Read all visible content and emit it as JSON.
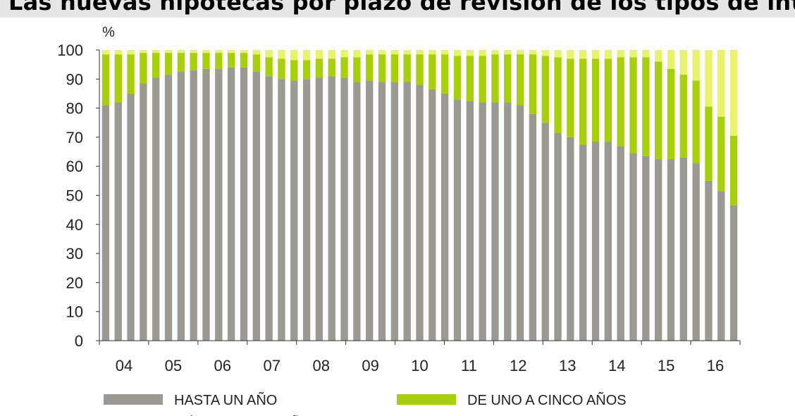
{
  "title": "Las nuevas hipotecas por plazo de revisión de los tipos de interés",
  "chart_data": {
    "type": "bar",
    "stacked": true,
    "unit_label": "%",
    "ylim": [
      0,
      100
    ],
    "yticks": [
      0,
      10,
      20,
      30,
      40,
      50,
      60,
      70,
      80,
      90,
      100
    ],
    "x_tick_labels": [
      "04",
      "05",
      "06",
      "07",
      "08",
      "09",
      "10",
      "11",
      "12",
      "13",
      "14",
      "15",
      "16"
    ],
    "grid": false,
    "legend_position": "bottom",
    "series": [
      {
        "name": "HASTA UN AÑO",
        "color": "#9a9a93",
        "values": [
          81,
          82,
          85,
          88.5,
          90.5,
          91.5,
          92.5,
          93,
          93.5,
          93.5,
          94,
          94,
          92.5,
          91,
          90,
          89.5,
          90,
          90.5,
          91,
          90.5,
          89,
          89.5,
          89,
          89,
          89,
          88,
          86.5,
          85,
          83,
          82.5,
          82,
          82,
          82,
          81,
          78,
          75,
          71.5,
          70,
          67.5,
          68.5,
          68.5,
          67,
          64.5,
          63.5,
          62.5,
          62.5,
          63,
          61,
          55,
          51.5,
          46.5
        ]
      },
      {
        "name": "DE UNO A CINCO AÑOS",
        "color": "#a7cf0c",
        "values": [
          17.5,
          16.5,
          13.5,
          10.5,
          8.5,
          7.5,
          6.5,
          6,
          5.5,
          5.5,
          5,
          5,
          6,
          6.5,
          7,
          7,
          6.5,
          6.5,
          6,
          7,
          8.5,
          9,
          9.5,
          9.5,
          9.5,
          10.5,
          12,
          13.5,
          15,
          15.5,
          16,
          16.5,
          16.5,
          17.5,
          20.5,
          23,
          26,
          27,
          29.5,
          28.5,
          28.5,
          30.5,
          33,
          34,
          33.5,
          31,
          28.5,
          28.5,
          25.5,
          25.5,
          24
        ]
      },
      {
        "name": "MÁS DE CINCO AÑOS",
        "color": "#e8f26a",
        "values": [
          1.5,
          1.5,
          1.5,
          1,
          1,
          1,
          1,
          1,
          1,
          1,
          1,
          1,
          1.5,
          2.5,
          3,
          3.5,
          3.5,
          3,
          3,
          2.5,
          2.5,
          1.5,
          1.5,
          1.5,
          1.5,
          1.5,
          1.5,
          1.5,
          2,
          2,
          2,
          1.5,
          1.5,
          1.5,
          1.5,
          2,
          2.5,
          3,
          3,
          3,
          3,
          2.5,
          2.5,
          2.5,
          4,
          6.5,
          8.5,
          10.5,
          19.5,
          23,
          29.5
        ]
      }
    ]
  }
}
